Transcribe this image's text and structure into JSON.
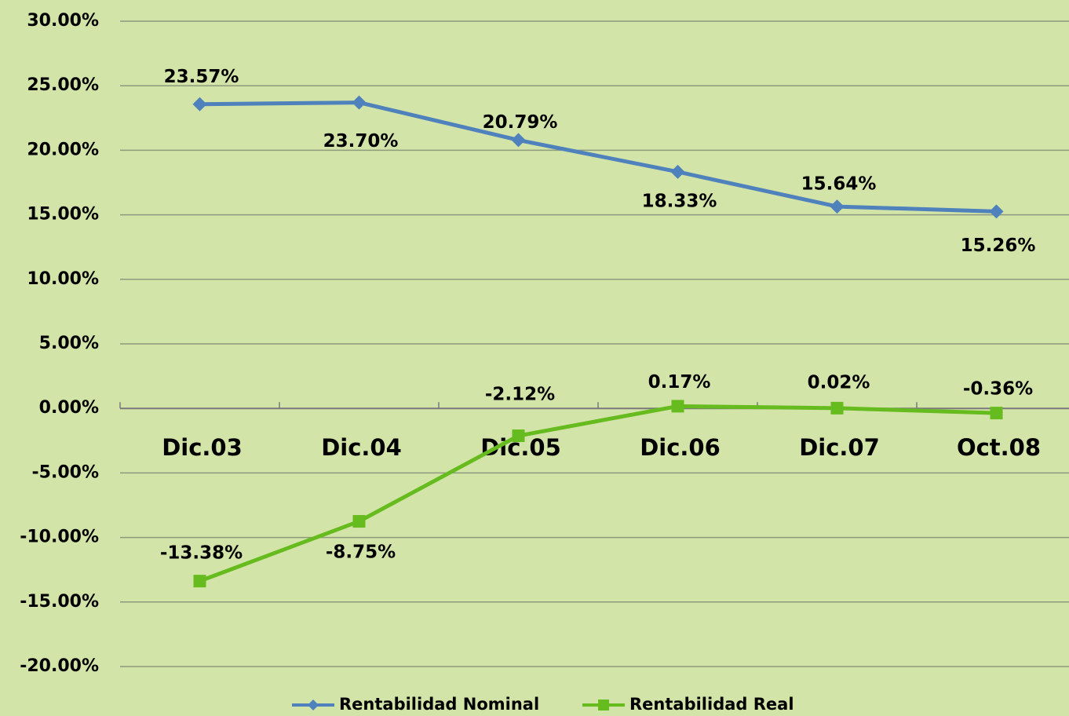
{
  "chart_data": {
    "type": "line",
    "categories": [
      "Dic.03",
      "Dic.04",
      "Dic.05",
      "Dic.06",
      "Dic.07",
      "Oct.08"
    ],
    "series": [
      {
        "name": "Rentabilidad Nominal",
        "color": "#4f81bd",
        "marker": "diamond",
        "values": [
          23.57,
          23.7,
          20.79,
          18.33,
          15.64,
          15.26
        ],
        "value_labels": [
          "23.57%",
          "23.70%",
          "20.79%",
          "18.33%",
          "15.64%",
          "15.26%"
        ]
      },
      {
        "name": "Rentabilidad Real",
        "color": "#66bb1e",
        "marker": "square",
        "values": [
          -13.38,
          -8.75,
          -2.12,
          0.17,
          0.02,
          -0.36
        ],
        "value_labels": [
          "-13.38%",
          "-8.75%",
          "-2.12%",
          "0.17%",
          "0.02%",
          "-0.36%"
        ]
      }
    ],
    "ylim": [
      -20,
      30
    ],
    "yticks": [
      {
        "value": -20,
        "label": "-20.00%"
      },
      {
        "value": -15,
        "label": "-15.00%"
      },
      {
        "value": -10,
        "label": "-10.00%"
      },
      {
        "value": -5,
        "label": "-5.00%"
      },
      {
        "value": 0,
        "label": "0.00%"
      },
      {
        "value": 5,
        "label": "5.00%"
      },
      {
        "value": 10,
        "label": "10.00%"
      },
      {
        "value": 15,
        "label": "15.00%"
      },
      {
        "value": 20,
        "label": "20.00%"
      },
      {
        "value": 25,
        "label": "25.00%"
      },
      {
        "value": 30,
        "label": "30.00%"
      }
    ],
    "grid": true,
    "legend": "bottom"
  }
}
